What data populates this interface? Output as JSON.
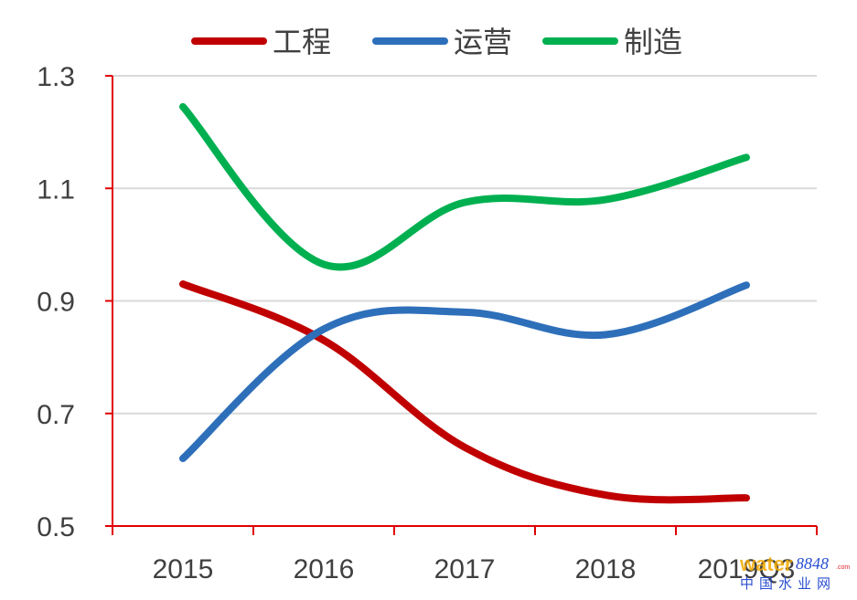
{
  "chart_data": {
    "type": "line",
    "categories": [
      "2015",
      "2016",
      "2017",
      "2018",
      "2019Q3"
    ],
    "series": [
      {
        "name": "工程",
        "color": "#c00000",
        "values": [
          0.93,
          0.83,
          0.64,
          0.555,
          0.55
        ]
      },
      {
        "name": "运营",
        "color": "#2e6fba",
        "values": [
          0.62,
          0.85,
          0.88,
          0.84,
          0.928
        ]
      },
      {
        "name": "制造",
        "color": "#00b050",
        "values": [
          1.245,
          0.965,
          1.075,
          1.08,
          1.155
        ]
      }
    ],
    "ylim": [
      0.5,
      1.3
    ],
    "yticks": [
      "0.5",
      "0.7",
      "0.9",
      "1.1",
      "1.3"
    ],
    "grid": true,
    "legend": "top"
  },
  "watermark": {
    "brand_word": "water",
    "brand_number": "8848",
    "brand_domain": ".com",
    "brand_cn": "中国水业网"
  }
}
